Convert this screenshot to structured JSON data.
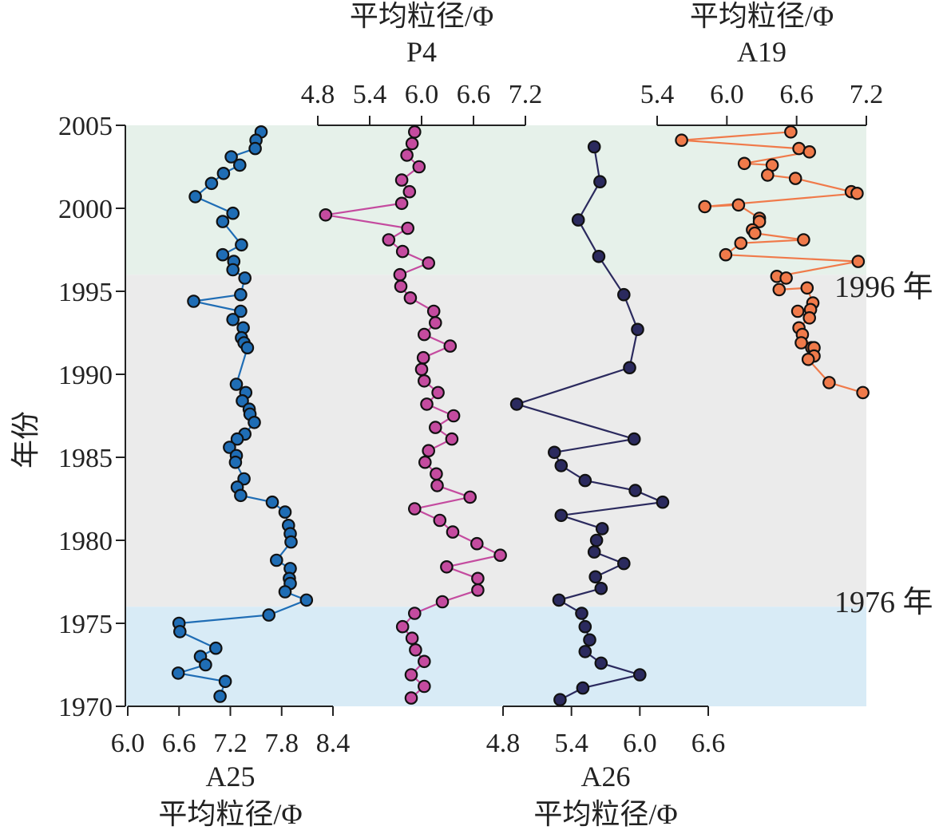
{
  "colors": {
    "band_recent": "#e6f1ea",
    "band_middle": "#ebebeb",
    "band_early": "#d8ebf6",
    "A25": "#1f6db5",
    "P4": "#c44b9f",
    "A26": "#2b2a5e",
    "A19": "#f07a4a",
    "axis": "#222222"
  },
  "annotations": {
    "y1996": "1996 年",
    "y1976": "1976 年"
  },
  "chart_data": {
    "type": "line",
    "y_axis": {
      "label": "年份",
      "range": [
        1970,
        2005
      ],
      "ticks": [
        "1970",
        "1975",
        "1980",
        "1985",
        "1990",
        "1995",
        "2000",
        "2005"
      ]
    },
    "bands": [
      {
        "from": 1996,
        "to": 2005,
        "color_key": "band_recent"
      },
      {
        "from": 1976,
        "to": 1996,
        "color_key": "band_middle"
      },
      {
        "from": 1970,
        "to": 1976,
        "color_key": "band_early"
      }
    ],
    "axes": {
      "A25": {
        "name": "A25",
        "label": "平均粒径/Φ",
        "range": [
          6.0,
          8.4
        ],
        "ticks": [
          "6.0",
          "6.6",
          "7.2",
          "7.8",
          "8.4"
        ]
      },
      "P4": {
        "name": "P4",
        "label": "平均粒径/Φ",
        "range": [
          4.8,
          7.2
        ],
        "ticks": [
          "4.8",
          "5.4",
          "6.0",
          "6.6",
          "7.2"
        ]
      },
      "A26": {
        "name": "A26",
        "label": "平均粒径/Φ",
        "range": [
          4.8,
          6.6
        ],
        "ticks": [
          "4.8",
          "5.4",
          "6.0",
          "6.6"
        ]
      },
      "A19": {
        "name": "A19",
        "label": "平均粒径/Φ",
        "range": [
          5.4,
          7.2
        ],
        "ticks": [
          "5.4",
          "6.0",
          "6.6",
          "7.2"
        ]
      }
    },
    "series": [
      {
        "name": "A25",
        "points": [
          [
            7.56,
            2004.6
          ],
          [
            7.5,
            2004.1
          ],
          [
            7.49,
            2003.6
          ],
          [
            7.21,
            2003.1
          ],
          [
            7.31,
            2002.6
          ],
          [
            7.12,
            2002.1
          ],
          [
            6.98,
            2001.5
          ],
          [
            6.79,
            2000.7
          ],
          [
            7.23,
            1999.7
          ],
          [
            7.11,
            1999.2
          ],
          [
            7.33,
            1997.8
          ],
          [
            7.11,
            1997.2
          ],
          [
            7.24,
            1996.8
          ],
          [
            7.23,
            1996.3
          ],
          [
            7.37,
            1995.8
          ],
          [
            7.32,
            1994.8
          ],
          [
            6.77,
            1994.4
          ],
          [
            7.32,
            1993.8
          ],
          [
            7.23,
            1993.3
          ],
          [
            7.35,
            1992.8
          ],
          [
            7.33,
            1992.2
          ],
          [
            7.36,
            1991.9
          ],
          [
            7.4,
            1991.6
          ],
          [
            7.27,
            1989.4
          ],
          [
            7.38,
            1988.9
          ],
          [
            7.34,
            1988.4
          ],
          [
            7.42,
            1987.9
          ],
          [
            7.43,
            1987.6
          ],
          [
            7.48,
            1987.1
          ],
          [
            7.37,
            1986.4
          ],
          [
            7.28,
            1986.1
          ],
          [
            7.19,
            1985.6
          ],
          [
            7.27,
            1985.1
          ],
          [
            7.26,
            1984.7
          ],
          [
            7.36,
            1983.7
          ],
          [
            7.28,
            1983.2
          ],
          [
            7.32,
            1982.7
          ],
          [
            7.69,
            1982.3
          ],
          [
            7.84,
            1981.7
          ],
          [
            7.88,
            1980.9
          ],
          [
            7.9,
            1980.4
          ],
          [
            7.91,
            1979.9
          ],
          [
            7.74,
            1978.8
          ],
          [
            7.9,
            1978.3
          ],
          [
            7.89,
            1977.7
          ],
          [
            7.9,
            1977.4
          ],
          [
            7.84,
            1976.9
          ],
          [
            8.09,
            1976.4
          ],
          [
            7.65,
            1975.5
          ],
          [
            6.6,
            1975.0
          ],
          [
            6.61,
            1974.5
          ],
          [
            7.03,
            1973.5
          ],
          [
            6.85,
            1973.0
          ],
          [
            6.91,
            1972.5
          ],
          [
            6.59,
            1972.0
          ],
          [
            7.14,
            1971.5
          ],
          [
            7.08,
            1970.6
          ]
        ]
      },
      {
        "name": "P4",
        "points": [
          [
            5.92,
            2004.6
          ],
          [
            5.89,
            2003.9
          ],
          [
            5.83,
            2003.2
          ],
          [
            5.97,
            2002.5
          ],
          [
            5.77,
            2001.7
          ],
          [
            5.86,
            2001.0
          ],
          [
            5.77,
            2000.3
          ],
          [
            4.89,
            1999.6
          ],
          [
            5.84,
            1998.8
          ],
          [
            5.62,
            1998.1
          ],
          [
            5.78,
            1997.4
          ],
          [
            6.08,
            1996.7
          ],
          [
            5.75,
            1996.0
          ],
          [
            5.76,
            1995.3
          ],
          [
            5.87,
            1994.6
          ],
          [
            6.14,
            1993.8
          ],
          [
            6.16,
            1993.1
          ],
          [
            6.03,
            1992.4
          ],
          [
            6.33,
            1991.7
          ],
          [
            6.02,
            1991.0
          ],
          [
            6.0,
            1990.3
          ],
          [
            6.03,
            1989.6
          ],
          [
            6.19,
            1988.9
          ],
          [
            6.06,
            1988.2
          ],
          [
            6.37,
            1987.5
          ],
          [
            6.16,
            1986.8
          ],
          [
            6.35,
            1986.1
          ],
          [
            6.08,
            1985.4
          ],
          [
            6.04,
            1984.7
          ],
          [
            6.17,
            1984.0
          ],
          [
            6.18,
            1983.3
          ],
          [
            6.56,
            1982.6
          ],
          [
            5.92,
            1981.9
          ],
          [
            6.21,
            1981.2
          ],
          [
            6.36,
            1980.5
          ],
          [
            6.64,
            1979.8
          ],
          [
            6.91,
            1979.1
          ],
          [
            6.29,
            1978.4
          ],
          [
            6.65,
            1977.7
          ],
          [
            6.65,
            1977.0
          ],
          [
            6.24,
            1976.3
          ],
          [
            5.92,
            1975.6
          ],
          [
            5.78,
            1974.8
          ],
          [
            5.89,
            1974.1
          ],
          [
            5.93,
            1973.4
          ],
          [
            6.03,
            1972.7
          ],
          [
            5.88,
            1971.9
          ],
          [
            6.03,
            1971.2
          ],
          [
            5.88,
            1970.5
          ]
        ]
      },
      {
        "name": "A26",
        "points": [
          [
            5.6,
            2003.7
          ],
          [
            5.65,
            2001.6
          ],
          [
            5.46,
            1999.3
          ],
          [
            5.64,
            1997.1
          ],
          [
            5.86,
            1994.8
          ],
          [
            5.98,
            1992.7
          ],
          [
            5.91,
            1990.4
          ],
          [
            4.92,
            1988.2
          ],
          [
            5.95,
            1986.1
          ],
          [
            5.25,
            1985.3
          ],
          [
            5.31,
            1984.5
          ],
          [
            5.52,
            1983.6
          ],
          [
            5.96,
            1983.0
          ],
          [
            6.2,
            1982.3
          ],
          [
            5.31,
            1981.5
          ],
          [
            5.67,
            1980.7
          ],
          [
            5.62,
            1980.0
          ],
          [
            5.6,
            1979.3
          ],
          [
            5.86,
            1978.6
          ],
          [
            5.61,
            1977.8
          ],
          [
            5.66,
            1977.1
          ],
          [
            5.29,
            1976.4
          ],
          [
            5.49,
            1975.6
          ],
          [
            5.52,
            1974.8
          ],
          [
            5.56,
            1974.0
          ],
          [
            5.52,
            1973.3
          ],
          [
            5.66,
            1972.6
          ],
          [
            6.0,
            1971.9
          ],
          [
            5.5,
            1971.1
          ],
          [
            5.3,
            1970.4
          ]
        ]
      },
      {
        "name": "A19",
        "points": [
          [
            6.55,
            2004.6
          ],
          [
            5.61,
            2004.1
          ],
          [
            6.62,
            2003.6
          ],
          [
            6.71,
            2003.4
          ],
          [
            6.15,
            2002.7
          ],
          [
            6.39,
            2002.6
          ],
          [
            6.35,
            2002.0
          ],
          [
            6.59,
            2001.8
          ],
          [
            7.07,
            2001.0
          ],
          [
            7.12,
            2000.9
          ],
          [
            5.81,
            2000.1
          ],
          [
            6.1,
            2000.2
          ],
          [
            6.28,
            1999.4
          ],
          [
            6.28,
            1999.2
          ],
          [
            6.22,
            1998.7
          ],
          [
            6.24,
            1998.5
          ],
          [
            6.66,
            1998.1
          ],
          [
            6.12,
            1997.9
          ],
          [
            5.99,
            1997.2
          ],
          [
            7.13,
            1996.8
          ],
          [
            6.43,
            1995.9
          ],
          [
            6.51,
            1995.8
          ],
          [
            6.45,
            1995.1
          ],
          [
            6.69,
            1995.2
          ],
          [
            6.74,
            1994.3
          ],
          [
            6.72,
            1993.9
          ],
          [
            6.61,
            1993.8
          ],
          [
            6.71,
            1993.4
          ],
          [
            6.62,
            1992.8
          ],
          [
            6.65,
            1992.4
          ],
          [
            6.73,
            1991.6
          ],
          [
            6.64,
            1991.9
          ],
          [
            6.75,
            1991.6
          ],
          [
            6.75,
            1991.1
          ],
          [
            6.7,
            1990.9
          ],
          [
            6.88,
            1989.5
          ],
          [
            7.17,
            1988.9
          ]
        ]
      }
    ]
  }
}
